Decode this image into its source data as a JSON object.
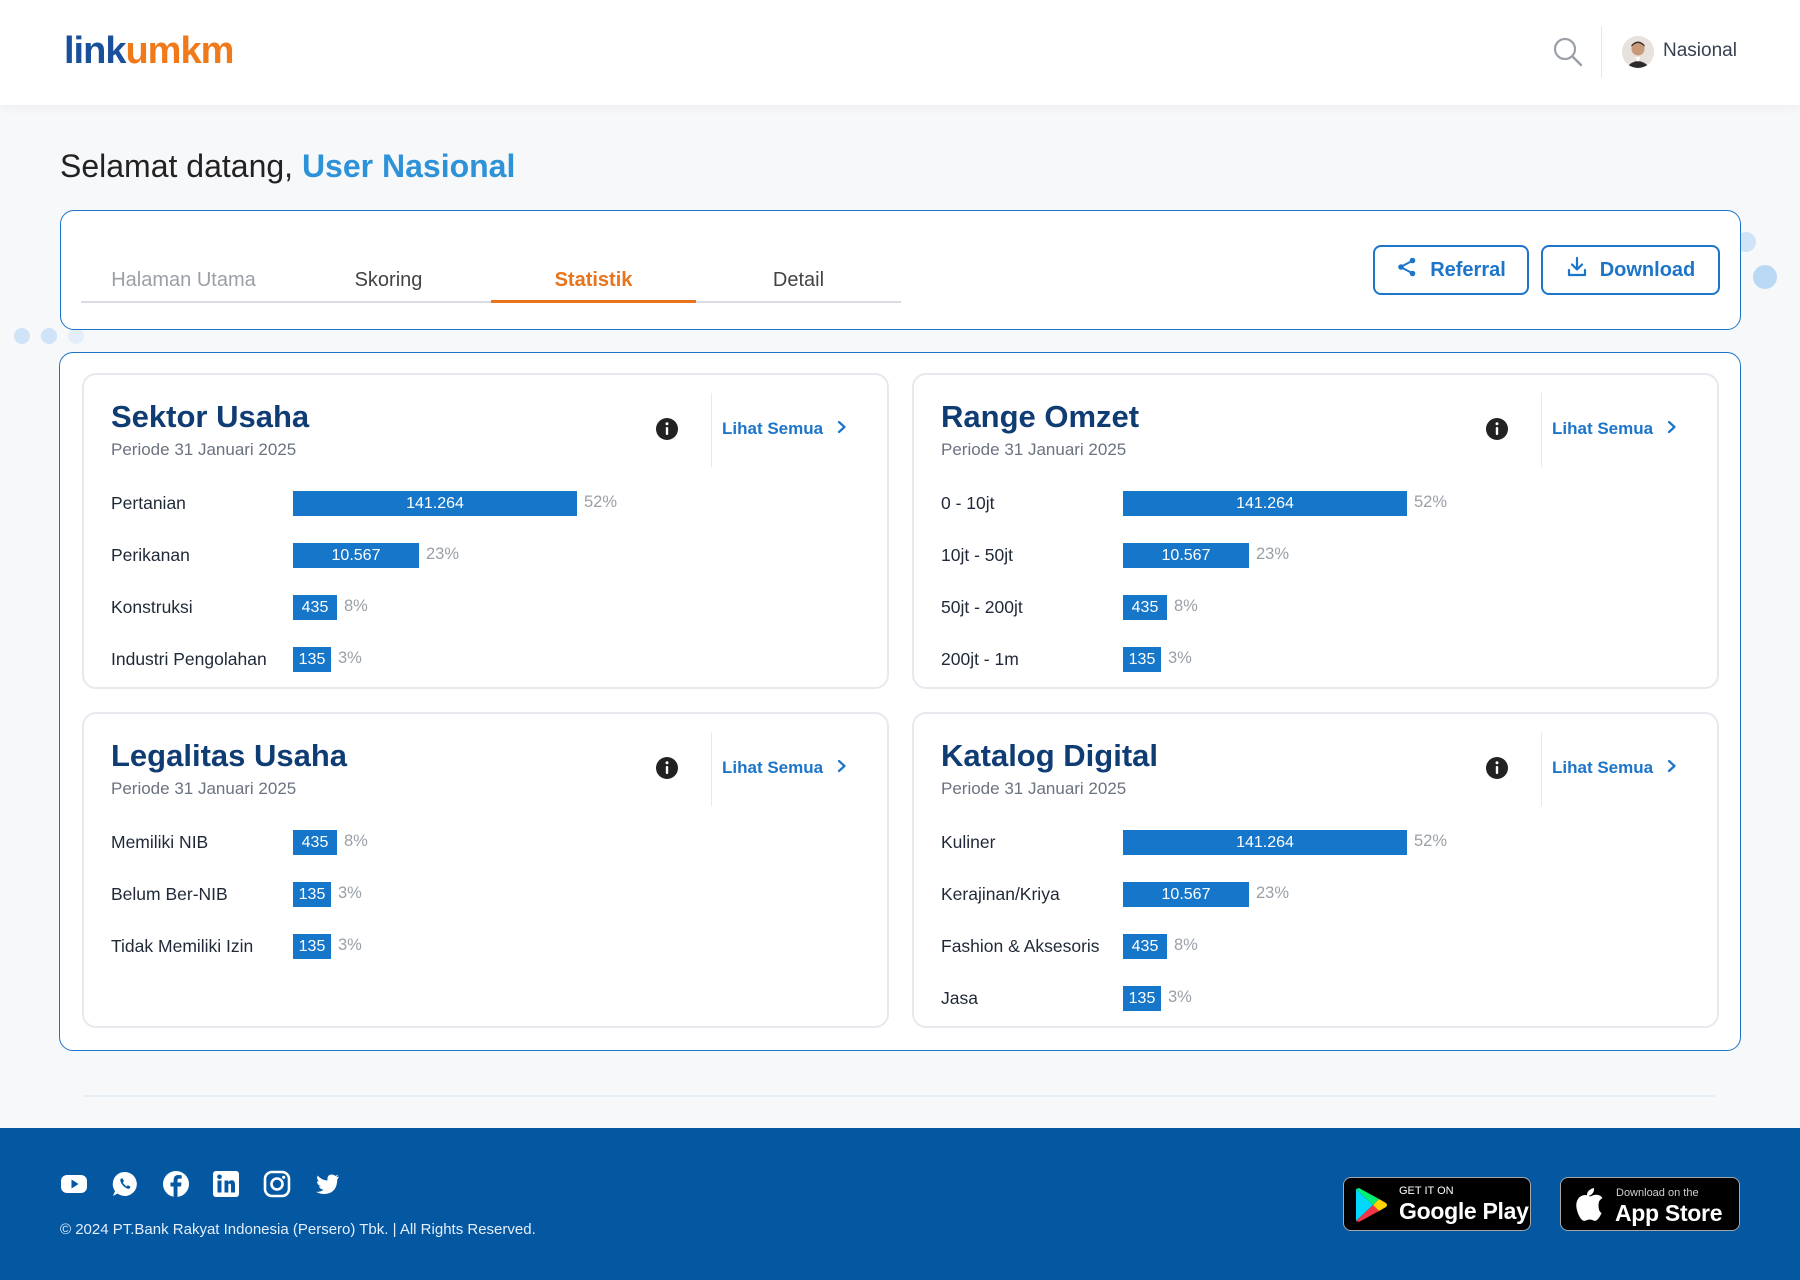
{
  "header": {
    "logo_part1": "link",
    "logo_part2": "umkm",
    "user_label": "Nasional"
  },
  "welcome": {
    "greeting": "Selamat datang,",
    "name": "User Nasional"
  },
  "tabs": [
    {
      "label": "Halaman Utama",
      "state": "disabled"
    },
    {
      "label": "Skoring",
      "state": "normal"
    },
    {
      "label": "Statistik",
      "state": "active"
    },
    {
      "label": "Detail",
      "state": "normal"
    }
  ],
  "actions": {
    "referral": "Referral",
    "download": "Download"
  },
  "cards": [
    {
      "title": "Sektor Usaha",
      "period": "Periode 31 Januari 2025",
      "see_all": "Lihat Semua",
      "rows": [
        {
          "label": "Pertanian",
          "value": "141.264",
          "pct": "52%",
          "fill": 0.52
        },
        {
          "label": "Perikanan",
          "value": "10.567",
          "pct": "23%",
          "fill": 0.23
        },
        {
          "label": "Konstruksi",
          "value": "435",
          "pct": "8%",
          "fill": 0.08
        },
        {
          "label": "Industri Pengolahan",
          "value": "135",
          "pct": "3%",
          "fill": 0.03
        }
      ]
    },
    {
      "title": "Range Omzet",
      "period": "Periode 31 Januari 2025",
      "see_all": "Lihat Semua",
      "rows": [
        {
          "label": "0 - 10jt",
          "value": "141.264",
          "pct": "52%",
          "fill": 0.52
        },
        {
          "label": "10jt - 50jt",
          "value": "10.567",
          "pct": "23%",
          "fill": 0.23
        },
        {
          "label": "50jt - 200jt",
          "value": "435",
          "pct": "8%",
          "fill": 0.08
        },
        {
          "label": "200jt - 1m",
          "value": "135",
          "pct": "3%",
          "fill": 0.03
        }
      ]
    },
    {
      "title": "Legalitas Usaha",
      "period": "Periode 31 Januari 2025",
      "see_all": "Lihat Semua",
      "rows": [
        {
          "label": "Memiliki NIB",
          "value": "435",
          "pct": "8%",
          "fill": 0.08
        },
        {
          "label": "Belum Ber-NIB",
          "value": "135",
          "pct": "3%",
          "fill": 0.03
        },
        {
          "label": "Tidak Memiliki Izin",
          "value": "135",
          "pct": "3%",
          "fill": 0.03
        }
      ]
    },
    {
      "title": "Katalog Digital",
      "period": "Periode 31 Januari 2025",
      "see_all": "Lihat Semua",
      "rows": [
        {
          "label": "Kuliner",
          "value": "141.264",
          "pct": "52%",
          "fill": 0.52
        },
        {
          "label": "Kerajinan/Kriya",
          "value": "10.567",
          "pct": "23%",
          "fill": 0.23
        },
        {
          "label": "Fashion & Aksesoris",
          "value": "435",
          "pct": "8%",
          "fill": 0.08
        },
        {
          "label": "Jasa",
          "value": "135",
          "pct": "3%",
          "fill": 0.03
        }
      ]
    }
  ],
  "footer": {
    "social_icons": [
      "youtube-icon",
      "whatsapp-icon",
      "facebook-icon",
      "linkedin-icon",
      "instagram-icon",
      "twitter-icon"
    ],
    "copyright": "© 2024 PT.Bank Rakyat Indonesia (Persero) Tbk. | All Rights Reserved.",
    "google_play_small": "GET IT ON",
    "google_play_big": "Google Play",
    "app_store_small": "Download on the",
    "app_store_big": "App Store"
  },
  "colors": {
    "accent_blue": "#1d75c9",
    "active_tab": "#e8741b",
    "footer_bg": "#0458a2",
    "title_navy": "#103c74"
  }
}
